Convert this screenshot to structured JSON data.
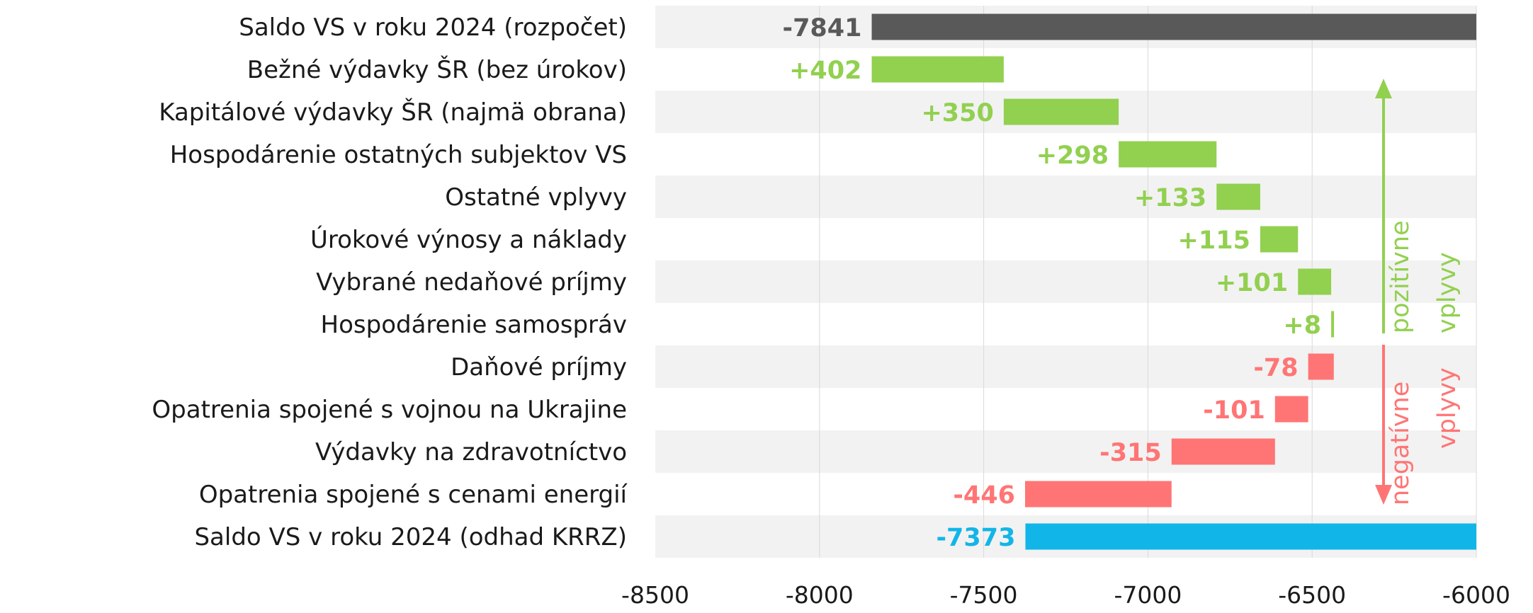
{
  "chart_data": {
    "type": "bar",
    "title": "",
    "xlabel": "",
    "ylabel": "",
    "xlim": [
      -8500,
      -6000
    ],
    "x_ticks": [
      -8500,
      -8000,
      -7500,
      -7000,
      -6500,
      -6000
    ],
    "x_tick_labels": [
      "-8500",
      "-8000",
      "-7500",
      "-7000",
      "-6500",
      "-6000"
    ],
    "grid": true,
    "categories": [
      "Saldo VS v roku 2024 (rozpočet)",
      "Bežné výdavky ŠR (bez úrokov)",
      "Kapitálové výdavky ŠR (najmä obrana)",
      "Hospodárenie ostatných subjektov VS",
      "Ostatné vplyvy",
      "Úrokové výnosy a náklady",
      "Vybrané nedaňové príjmy",
      "Hospodárenie samospráv",
      "Daňové príjmy",
      "Opatrenia spojené s vojnou na Ukrajine",
      "Výdavky na zdravotníctvo",
      "Opatrenia spojené s cenami energií",
      "Saldo VS v roku 2024 (odhad KRRZ)"
    ],
    "bars": [
      {
        "start": -7841,
        "end": -6000,
        "kind": "total",
        "label": "-7841"
      },
      {
        "start": -7841,
        "end": -7439,
        "kind": "positive",
        "label": "+402"
      },
      {
        "start": -7439,
        "end": -7089,
        "kind": "positive",
        "label": "+350"
      },
      {
        "start": -7089,
        "end": -6791,
        "kind": "positive",
        "label": "+298"
      },
      {
        "start": -6791,
        "end": -6658,
        "kind": "positive",
        "label": "+133"
      },
      {
        "start": -6658,
        "end": -6543,
        "kind": "positive",
        "label": "+115"
      },
      {
        "start": -6543,
        "end": -6442,
        "kind": "positive",
        "label": "+101"
      },
      {
        "start": -6442,
        "end": -6434,
        "kind": "positive",
        "label": "+8"
      },
      {
        "start": -6512,
        "end": -6434,
        "kind": "negative",
        "label": "-78"
      },
      {
        "start": -6613,
        "end": -6512,
        "kind": "negative",
        "label": "-101"
      },
      {
        "start": -6928,
        "end": -6613,
        "kind": "negative",
        "label": "-315"
      },
      {
        "start": -7374,
        "end": -6928,
        "kind": "negative",
        "label": "-446"
      },
      {
        "start": -7373,
        "end": -6000,
        "kind": "result",
        "label": "-7373"
      }
    ],
    "colors": {
      "total": "#595959",
      "positive": "#92D050",
      "negative": "#FF7575",
      "result": "#12B5E8",
      "stripe": "#F2F2F2",
      "grid": "#D9D9D9"
    },
    "annotations": {
      "positive_line1": "pozitívne",
      "positive_line2": "vplyvy",
      "negative_line1": "negatívne",
      "negative_line2": "vplyvy"
    }
  }
}
